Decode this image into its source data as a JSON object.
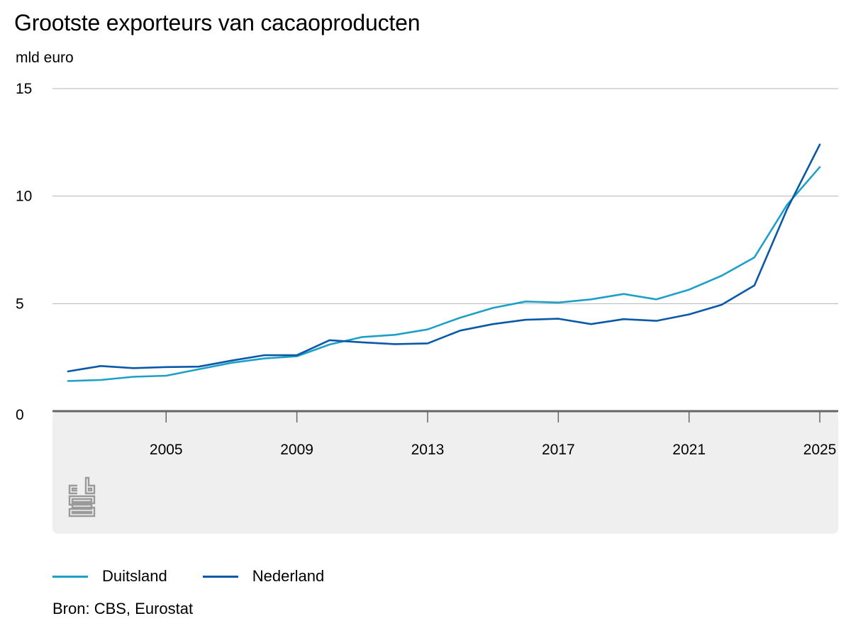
{
  "title": "Grootste exporteurs van cacaoproducten",
  "unit_label": "mld euro",
  "source": "Bron: CBS, Eurostat",
  "logo_text": "cbs",
  "colors": {
    "duitsland": "#1DA0C8",
    "nederland": "#0A58A8",
    "grid": "#b4b4b4",
    "axis": "#666666",
    "panel": "#efefef"
  },
  "chart_data": {
    "type": "line",
    "title": "Grootste exporteurs van cacaoproducten",
    "ylabel": "mld euro",
    "xlabel": "",
    "ylim": [
      0,
      15
    ],
    "yticks": [
      "0",
      "5",
      "10",
      "15"
    ],
    "xticks": [
      "2005",
      "2009",
      "2013",
      "2017",
      "2021",
      "2025"
    ],
    "x": [
      2002,
      2003,
      2004,
      2005,
      2006,
      2007,
      2008,
      2009,
      2010,
      2011,
      2012,
      2013,
      2014,
      2015,
      2016,
      2017,
      2018,
      2019,
      2020,
      2021,
      2022,
      2023,
      2024,
      2025
    ],
    "series": [
      {
        "name": "Duitsland",
        "values": [
          1.4,
          1.45,
          1.6,
          1.65,
          1.95,
          2.25,
          2.45,
          2.55,
          3.1,
          3.45,
          3.55,
          3.8,
          4.35,
          4.8,
          5.1,
          5.05,
          5.2,
          5.45,
          5.2,
          5.65,
          6.3,
          7.15,
          9.6,
          11.35
        ]
      },
      {
        "name": "Nederland",
        "values": [
          1.85,
          2.1,
          2.0,
          2.05,
          2.07,
          2.35,
          2.6,
          2.6,
          3.3,
          3.2,
          3.12,
          3.15,
          3.75,
          4.05,
          4.25,
          4.3,
          4.05,
          4.28,
          4.2,
          4.5,
          4.95,
          5.85,
          9.4,
          12.4
        ]
      }
    ],
    "legend": "bottom-left"
  }
}
